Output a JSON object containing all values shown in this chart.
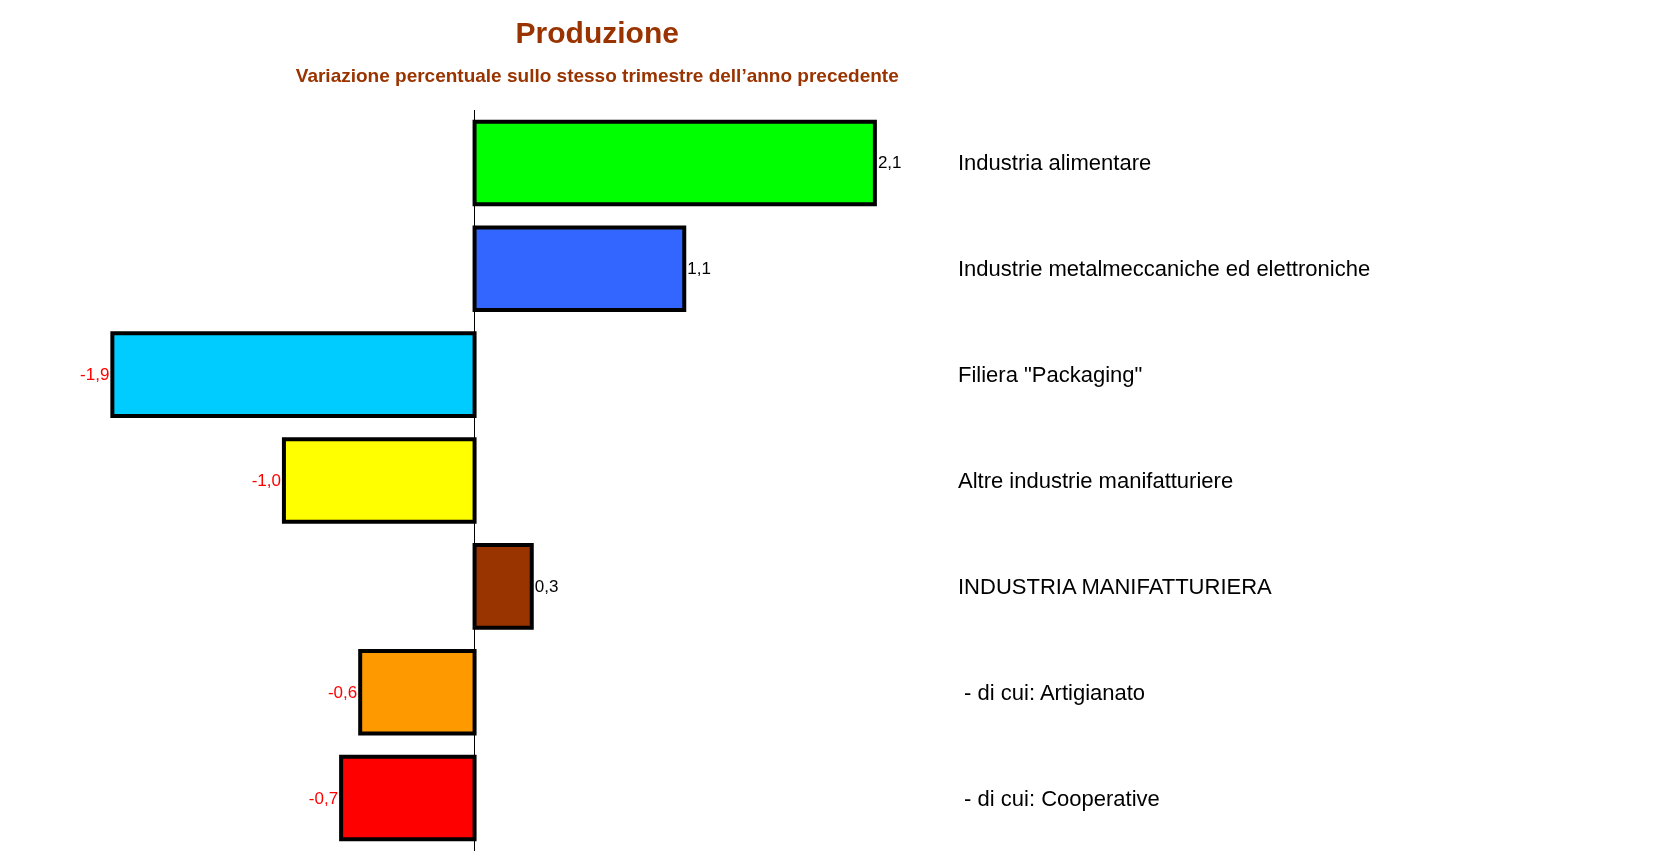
{
  "chart_data": {
    "type": "bar",
    "orientation": "horizontal",
    "title": "Produzione",
    "subtitle": "Variazione percentuale sullo stesso trimestre dell’anno precedente",
    "categories": [
      "Industria alimentare",
      "Industrie metalmeccaniche ed elettroniche",
      "Filiera \"Packaging\"",
      "Altre industrie manifatturiere",
      "INDUSTRIA MANIFATTURIERA",
      " - di cui: Artigianato",
      " - di cui: Cooperative"
    ],
    "values": [
      2.1,
      1.1,
      -1.9,
      -1.0,
      0.3,
      -0.6,
      -0.7
    ],
    "value_labels": [
      "2,1",
      "1,1",
      "-1,9",
      "-1,0",
      "0,3",
      "-0,6",
      "-0,7"
    ],
    "colors": [
      "#00ff00",
      "#3366ff",
      "#00ccff",
      "#ffff00",
      "#993300",
      "#ff9900",
      "#ff0000"
    ],
    "legend": false
  }
}
